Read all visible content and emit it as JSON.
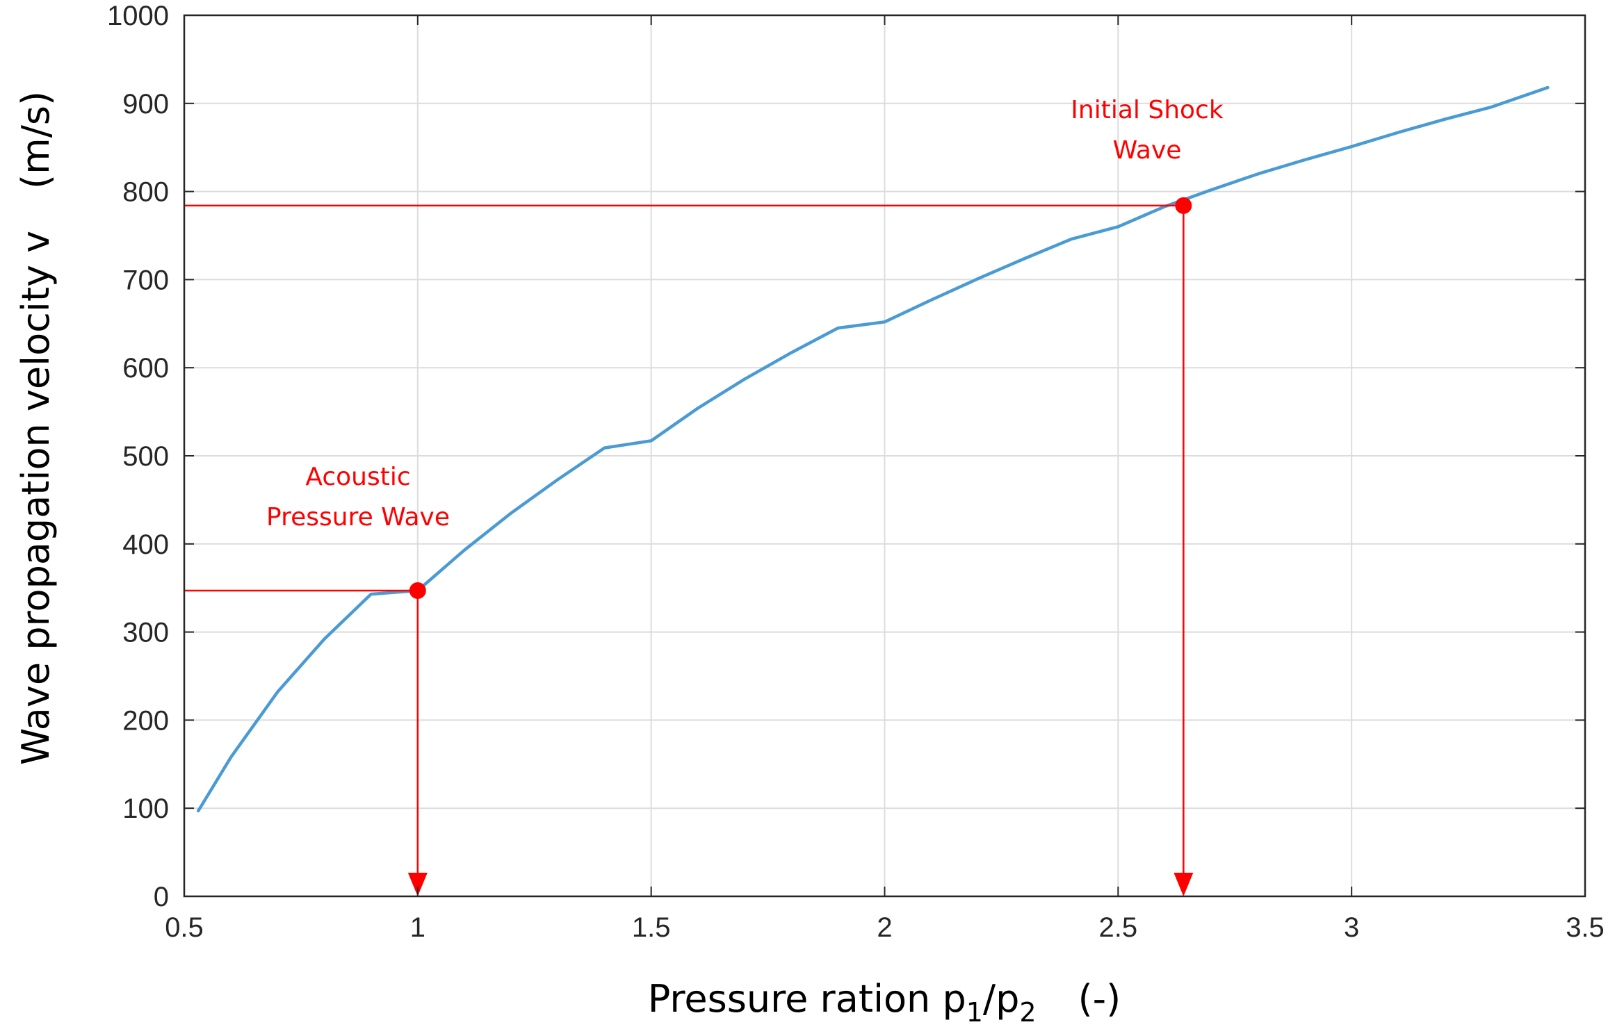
{
  "chart_data": {
    "type": "line",
    "xlabel_parts": {
      "main": "Pressure ration p",
      "sub1": "1",
      "slash": "/p",
      "sub2": "2",
      "unit": "(-)"
    },
    "ylabel": "Wave propagation velocity v",
    "ylabel_unit": "(m/s)",
    "xlim": [
      0.5,
      3.5
    ],
    "ylim": [
      0,
      1000
    ],
    "x_ticks": [
      "0.5",
      "1",
      "1.5",
      "2",
      "2.5",
      "3",
      "3.5"
    ],
    "y_ticks": [
      "0",
      "100",
      "200",
      "300",
      "400",
      "500",
      "600",
      "700",
      "800",
      "900",
      "1000"
    ],
    "grid": true,
    "series": [
      {
        "color": "#4a9bd4",
        "x": [
          0.53,
          0.6,
          0.7,
          0.8,
          0.9,
          1.0,
          1.1,
          1.2,
          1.3,
          1.4,
          1.5,
          1.6,
          1.7,
          1.8,
          1.9,
          2.0,
          2.1,
          2.2,
          2.3,
          2.4,
          2.5,
          2.6,
          2.7,
          2.8,
          2.9,
          3.0,
          3.1,
          3.2,
          3.3,
          3.42
        ],
        "y": [
          97,
          158,
          232,
          292,
          343,
          347,
          393,
          435,
          473,
          509,
          517,
          554,
          587,
          617,
          645,
          652,
          677,
          701,
          724,
          746,
          760,
          783,
          802,
          820,
          836,
          851,
          867,
          882,
          896,
          918
        ]
      }
    ],
    "markers": [
      {
        "x": 1.0,
        "y": 347,
        "label_lines": [
          "Acoustic",
          "Pressure Wave"
        ]
      },
      {
        "x": 2.64,
        "y": 784,
        "label_lines": [
          "Initial Shock",
          "Wave"
        ]
      }
    ],
    "marker_color": "#ff0000"
  }
}
